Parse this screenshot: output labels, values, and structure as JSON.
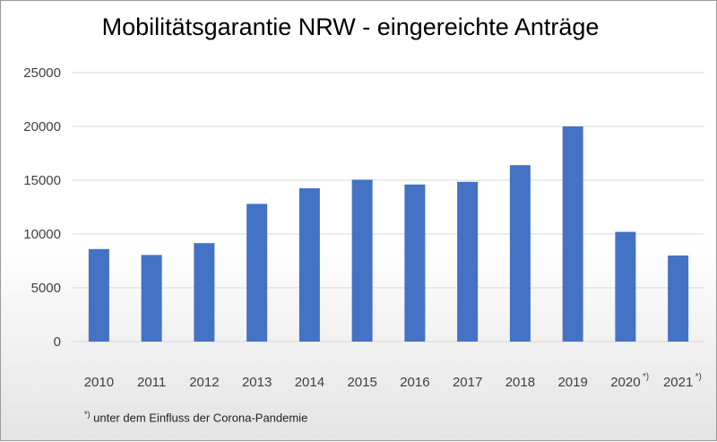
{
  "chart_data": {
    "type": "bar",
    "title": "Mobilitätsgarantie NRW - eingereichte Anträge",
    "categories": [
      "2010",
      "2011",
      "2012",
      "2013",
      "2014",
      "2015",
      "2016",
      "2017",
      "2018",
      "2019",
      "2020",
      "2021"
    ],
    "category_marks": [
      "",
      "",
      "",
      "",
      "",
      "",
      "",
      "",
      "",
      "",
      "*)",
      "*)"
    ],
    "values": [
      8600,
      8050,
      9150,
      12800,
      14250,
      15050,
      14600,
      14850,
      16400,
      20000,
      10200,
      8000
    ],
    "ylim": [
      0,
      25000
    ],
    "yticks": [
      "0",
      "5000",
      "10000",
      "15000",
      "20000",
      "25000"
    ],
    "bar_color": "#4472c4",
    "grid": true,
    "legend": "none",
    "footnote_mark": "*)",
    "footnote_text": "unter dem Einfluss der Corona-Pandemie"
  }
}
